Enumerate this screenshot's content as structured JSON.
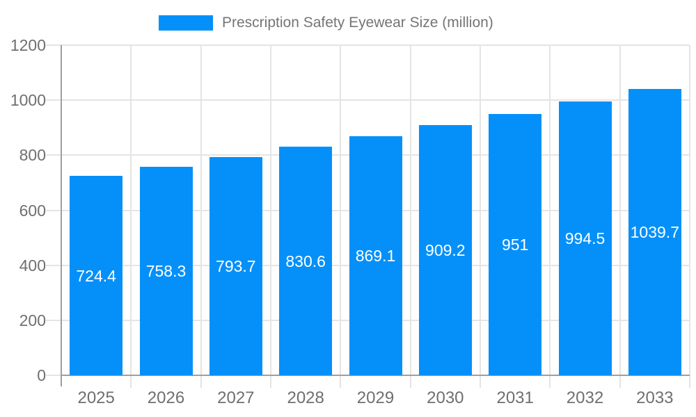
{
  "legend": {
    "label": "Prescription Safety Eyewear Size (million)"
  },
  "chart_data": {
    "type": "bar",
    "title": "Prescription Safety Eyewear Size (million)",
    "categories": [
      "2025",
      "2026",
      "2027",
      "2028",
      "2029",
      "2030",
      "2031",
      "2032",
      "2033"
    ],
    "values": [
      724.4,
      758.3,
      793.7,
      830.6,
      869.1,
      909.2,
      951,
      994.5,
      1039.7
    ],
    "value_labels": [
      "724.4",
      "758.3",
      "793.7",
      "830.6",
      "869.1",
      "909.2",
      "951",
      "994.5",
      "1039.7"
    ],
    "xlabel": "",
    "ylabel": "",
    "ylim": [
      0,
      1200
    ],
    "yticks": [
      0,
      200,
      400,
      600,
      800,
      1000,
      1200
    ],
    "grid": true,
    "legend_position": "top",
    "value_label_position": "center-of-bar",
    "colors": {
      "bar": "#0590f9",
      "grid": "#e4e4e4",
      "axis": "#9e9e9e",
      "tick_label": "#6f6f6f",
      "legend_text": "#757575",
      "value_label": "#ffffff",
      "background": "#ffffff"
    }
  }
}
